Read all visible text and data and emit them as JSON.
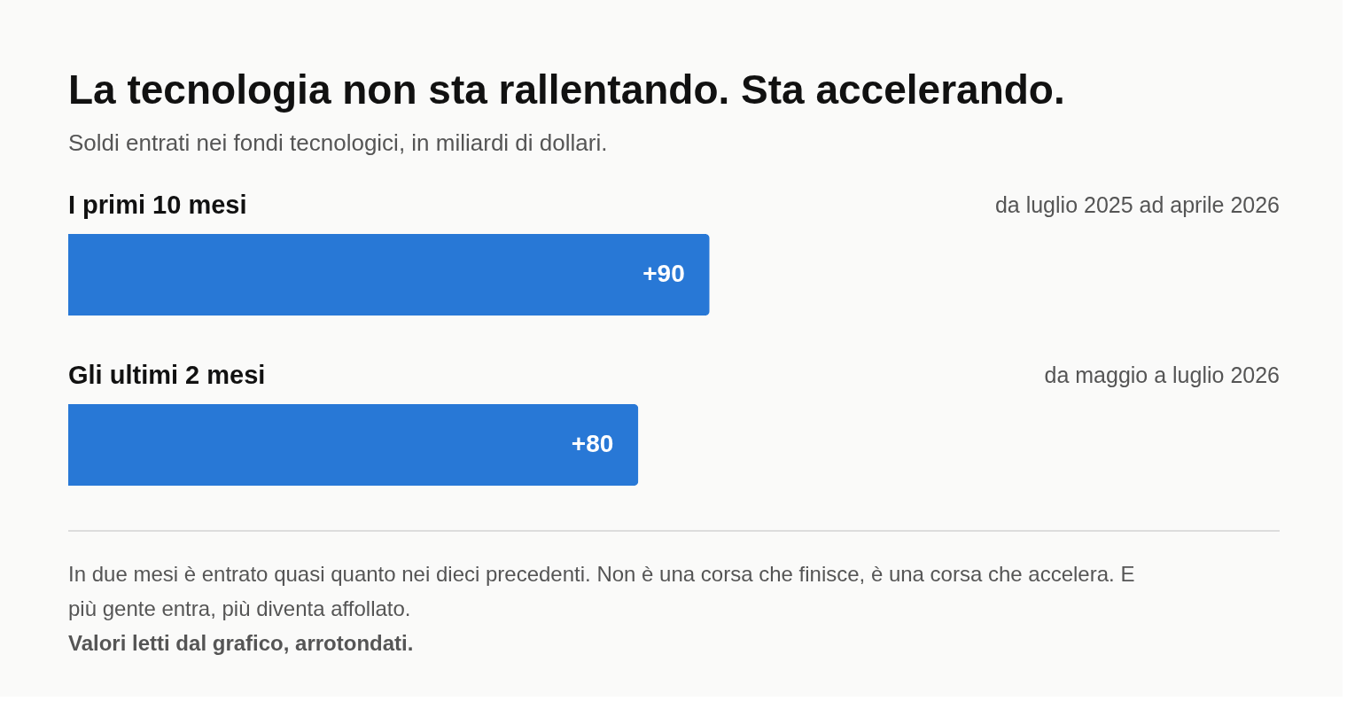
{
  "chart_data": {
    "type": "bar",
    "orientation": "horizontal",
    "title": "La tecnologia non sta rallentando. Sta accelerando.",
    "subtitle": "Soldi entrati nei fondi tecnologici, in miliardi di dollari.",
    "categories": [
      "I primi 10 mesi",
      "Gli ultimi 2 mesi"
    ],
    "values": [
      90,
      80
    ],
    "color": "#2878d6",
    "xlim": [
      0,
      170
    ],
    "value_labels": [
      "+90",
      "+80"
    ],
    "annotations": [
      "da luglio 2025 ad aprile 2026",
      "da maggio a luglio 2026",
      "In due mesi è entrato quasi quanto nei dieci precedenti. Non è una corsa che finisce, è una corsa che accelera. E più gente entra, più diventa affollato.",
      "Valori letti dal grafico, arrotondati."
    ],
    "grid": false
  }
}
